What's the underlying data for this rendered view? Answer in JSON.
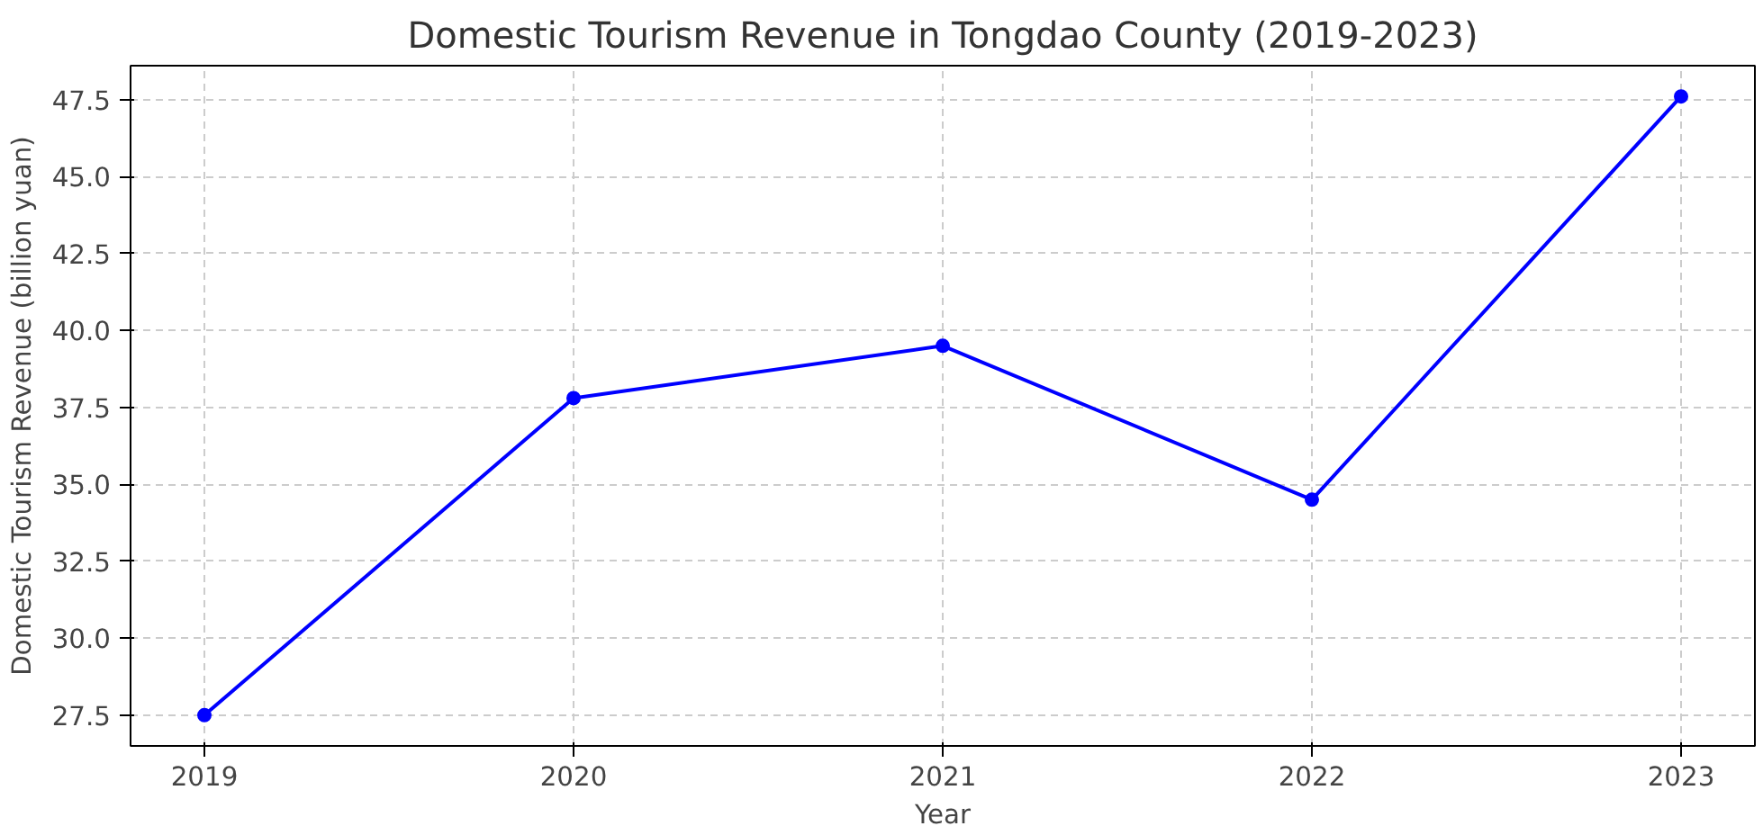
{
  "chart_data": {
    "type": "line",
    "title": "Domestic Tourism Revenue in Tongdao County (2019-2023)",
    "xlabel": "Year",
    "ylabel": "Domestic Tourism Revenue (billion yuan)",
    "x": [
      2019,
      2020,
      2021,
      2022,
      2023
    ],
    "series": [
      {
        "color": "#0000ff",
        "values": [
          27.5,
          37.8,
          39.5,
          34.5,
          47.6
        ]
      }
    ],
    "xlim": [
      2018.8,
      2023.2
    ],
    "xticks": [
      2019,
      2020,
      2021,
      2022,
      2023
    ],
    "ylim": [
      26.5,
      48.6
    ],
    "yticks": [
      {
        "value": 27.5,
        "label": "27.5"
      },
      {
        "value": 30,
        "label": "30.0"
      },
      {
        "value": 32.5,
        "label": "32.5"
      },
      {
        "value": 35,
        "label": "35.0"
      },
      {
        "value": 37.5,
        "label": "37.5"
      },
      {
        "value": 40,
        "label": "40.0"
      },
      {
        "value": 42.5,
        "label": "42.5"
      },
      {
        "value": 45,
        "label": "45.0"
      },
      {
        "value": 47.5,
        "label": "47.5"
      }
    ],
    "grid": true,
    "marker": "circle",
    "line_style": "solid"
  }
}
